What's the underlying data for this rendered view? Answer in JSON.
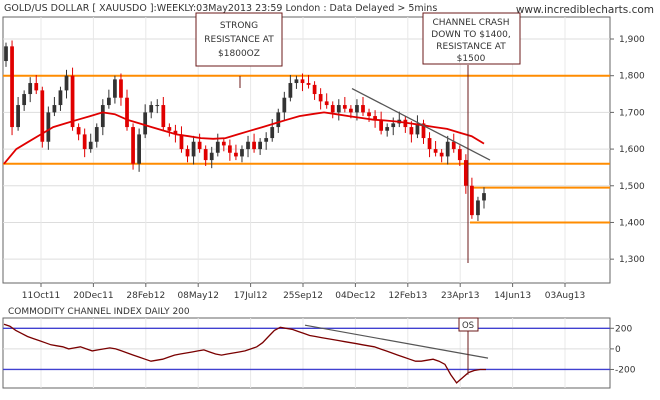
{
  "header": {
    "title": "GOLD/US DOLLAR [ XAUUSDO ]:WEEKLY:03May2013 23:59 London : Data Delayed > 5mins",
    "brand": "www.incrediblecharts.com"
  },
  "annotations": {
    "resistance_lines": [
      "STRONG",
      "RESISTANCE AT",
      "$1800OZ"
    ],
    "crash_lines": [
      "CHANNEL CRASH",
      "DOWN TO $1400,",
      "RESISTANCE AT",
      "$1500"
    ],
    "os_label": "OS"
  },
  "colors": {
    "candle_up": "#333333",
    "candle_down": "#e00000",
    "moving_average": "#e00000",
    "orange_level": "#ff8c00",
    "cci_line": "#7a0000",
    "cci_band": "#4040d0",
    "trendline": "#555555",
    "annotation_border": "#6b1a1a",
    "grid": "#dddddd"
  },
  "chart_data": [
    {
      "type": "candlestick",
      "title": "GOLD/US DOLLAR [ XAUUSDO ]:WEEKLY:03May2013 23:59 London : Data Delayed > 5mins",
      "x_tick_labels": [
        "11Oct11",
        "20Dec11",
        "28Feb12",
        "08May12",
        "17Jul12",
        "25Sep12",
        "04Dec12",
        "12Feb13",
        "23Apr13",
        "14Jun13",
        "03Aug13"
      ],
      "y_ticks": [
        1300,
        1400,
        1500,
        1600,
        1700,
        1800,
        1900
      ],
      "y_tick_labels": [
        "1,300",
        "1,400",
        "1,500",
        "1,600",
        "1,700",
        "1,800",
        "1,900"
      ],
      "ylim": [
        1235,
        1960
      ],
      "horizontal_levels": [
        1800,
        1560,
        1495,
        1400
      ],
      "weekly_closes": [
        1880,
        1660,
        1720,
        1750,
        1780,
        1760,
        1620,
        1700,
        1720,
        1760,
        1800,
        1660,
        1640,
        1600,
        1620,
        1660,
        1720,
        1740,
        1790,
        1740,
        1660,
        1560,
        1640,
        1700,
        1720,
        1720,
        1660,
        1650,
        1640,
        1600,
        1580,
        1620,
        1600,
        1570,
        1590,
        1620,
        1610,
        1590,
        1580,
        1600,
        1620,
        1600,
        1620,
        1630,
        1660,
        1700,
        1740,
        1780,
        1790,
        1780,
        1775,
        1750,
        1730,
        1720,
        1700,
        1720,
        1710,
        1700,
        1720,
        1700,
        1690,
        1680,
        1650,
        1660,
        1670,
        1680,
        1660,
        1640,
        1670,
        1630,
        1600,
        1590,
        1580,
        1620,
        1600,
        1570,
        1500,
        1420,
        1460,
        1480
      ],
      "ma_values": [
        1560,
        1600,
        1620,
        1640,
        1660,
        1670,
        1680,
        1690,
        1700,
        1695,
        1680,
        1670,
        1660,
        1650,
        1640,
        1635,
        1630,
        1628,
        1630,
        1640,
        1650,
        1660,
        1670,
        1680,
        1690,
        1695,
        1700,
        1695,
        1690,
        1685,
        1680,
        1678,
        1675,
        1670,
        1665,
        1660,
        1655,
        1645,
        1635,
        1615
      ]
    },
    {
      "type": "line",
      "title": "COMMODITY CHANNEL INDEX DAILY 200",
      "y_ticks": [
        200,
        0,
        -200
      ],
      "y_tick_labels": [
        "200",
        "0",
        "-200"
      ],
      "ylim": [
        -380,
        300
      ],
      "band_levels": [
        200,
        -200
      ],
      "values": [
        240,
        220,
        180,
        150,
        120,
        100,
        80,
        60,
        40,
        30,
        20,
        0,
        10,
        20,
        0,
        -20,
        -10,
        0,
        10,
        0,
        -20,
        -40,
        -60,
        -80,
        -100,
        -120,
        -110,
        -100,
        -80,
        -60,
        -50,
        -40,
        -30,
        -20,
        -10,
        -30,
        -50,
        -60,
        -50,
        -40,
        -30,
        -20,
        0,
        20,
        60,
        120,
        180,
        210,
        200,
        190,
        170,
        150,
        130,
        120,
        110,
        100,
        90,
        80,
        70,
        60,
        50,
        40,
        30,
        20,
        0,
        -20,
        -40,
        -60,
        -80,
        -100,
        -120,
        -120,
        -110,
        -100,
        -120,
        -150,
        -250,
        -330,
        -280,
        -230,
        -210,
        -200,
        -200
      ]
    }
  ]
}
